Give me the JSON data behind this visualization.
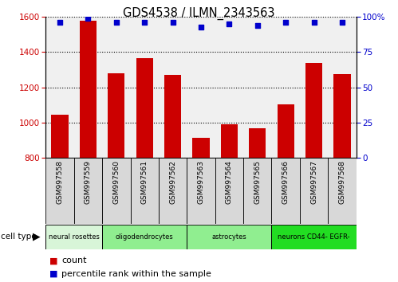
{
  "title": "GDS4538 / ILMN_2343563",
  "samples": [
    "GSM997558",
    "GSM997559",
    "GSM997560",
    "GSM997561",
    "GSM997562",
    "GSM997563",
    "GSM997564",
    "GSM997565",
    "GSM997566",
    "GSM997567",
    "GSM997568"
  ],
  "counts": [
    1045,
    1580,
    1280,
    1365,
    1270,
    915,
    990,
    970,
    1105,
    1340,
    1275
  ],
  "percentile_ranks": [
    96,
    99,
    96,
    96,
    96,
    93,
    95,
    94,
    96,
    96,
    96
  ],
  "ylim_left": [
    800,
    1600
  ],
  "ylim_right": [
    0,
    100
  ],
  "cell_types": [
    {
      "label": "neural rosettes",
      "start": 0,
      "end": 2,
      "color": "#d8f5d8"
    },
    {
      "label": "oligodendrocytes",
      "start": 2,
      "end": 5,
      "color": "#90ee90"
    },
    {
      "label": "astrocytes",
      "start": 5,
      "end": 8,
      "color": "#90ee90"
    },
    {
      "label": "neurons CD44- EGFR-",
      "start": 8,
      "end": 11,
      "color": "#22dd22"
    }
  ],
  "bar_color": "#cc0000",
  "dot_color": "#0000cc",
  "left_tick_color": "#cc0000",
  "right_tick_color": "#0000cc",
  "grid_color": "#000000",
  "yticks_left": [
    800,
    1000,
    1200,
    1400,
    1600
  ],
  "yticks_right": [
    0,
    25,
    50,
    75,
    100
  ],
  "background_color": "#ffffff",
  "legend_count_color": "#cc0000",
  "legend_pct_color": "#0000cc",
  "sample_box_color": "#d8d8d8"
}
